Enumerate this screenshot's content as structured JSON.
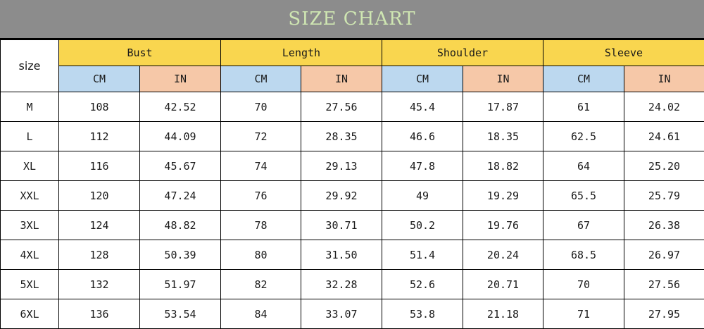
{
  "title": "SIZE CHART",
  "size_header": "size",
  "groups": [
    "Bust",
    "Length",
    "Shoulder",
    "Sleeve"
  ],
  "unit_labels": {
    "cm": "CM",
    "in": "IN"
  },
  "colors": {
    "title_bg": "#8c8c8c",
    "title_text": "#cfe6b2",
    "group_header": "#f9d64f",
    "cm_header": "#bcd8ef",
    "in_header": "#f6c8a8"
  },
  "rows": [
    {
      "size": "M",
      "bust_cm": "108",
      "bust_in": "42.52",
      "length_cm": "70",
      "length_in": "27.56",
      "shoulder_cm": "45.4",
      "shoulder_in": "17.87",
      "sleeve_cm": "61",
      "sleeve_in": "24.02"
    },
    {
      "size": "L",
      "bust_cm": "112",
      "bust_in": "44.09",
      "length_cm": "72",
      "length_in": "28.35",
      "shoulder_cm": "46.6",
      "shoulder_in": "18.35",
      "sleeve_cm": "62.5",
      "sleeve_in": "24.61"
    },
    {
      "size": "XL",
      "bust_cm": "116",
      "bust_in": "45.67",
      "length_cm": "74",
      "length_in": "29.13",
      "shoulder_cm": "47.8",
      "shoulder_in": "18.82",
      "sleeve_cm": "64",
      "sleeve_in": "25.20"
    },
    {
      "size": "XXL",
      "bust_cm": "120",
      "bust_in": "47.24",
      "length_cm": "76",
      "length_in": "29.92",
      "shoulder_cm": "49",
      "shoulder_in": "19.29",
      "sleeve_cm": "65.5",
      "sleeve_in": "25.79"
    },
    {
      "size": "3XL",
      "bust_cm": "124",
      "bust_in": "48.82",
      "length_cm": "78",
      "length_in": "30.71",
      "shoulder_cm": "50.2",
      "shoulder_in": "19.76",
      "sleeve_cm": "67",
      "sleeve_in": "26.38"
    },
    {
      "size": "4XL",
      "bust_cm": "128",
      "bust_in": "50.39",
      "length_cm": "80",
      "length_in": "31.50",
      "shoulder_cm": "51.4",
      "shoulder_in": "20.24",
      "sleeve_cm": "68.5",
      "sleeve_in": "26.97"
    },
    {
      "size": "5XL",
      "bust_cm": "132",
      "bust_in": "51.97",
      "length_cm": "82",
      "length_in": "32.28",
      "shoulder_cm": "52.6",
      "shoulder_in": "20.71",
      "sleeve_cm": "70",
      "sleeve_in": "27.56"
    },
    {
      "size": "6XL",
      "bust_cm": "136",
      "bust_in": "53.54",
      "length_cm": "84",
      "length_in": "33.07",
      "shoulder_cm": "53.8",
      "shoulder_in": "21.18",
      "sleeve_cm": "71",
      "sleeve_in": "27.95"
    }
  ]
}
